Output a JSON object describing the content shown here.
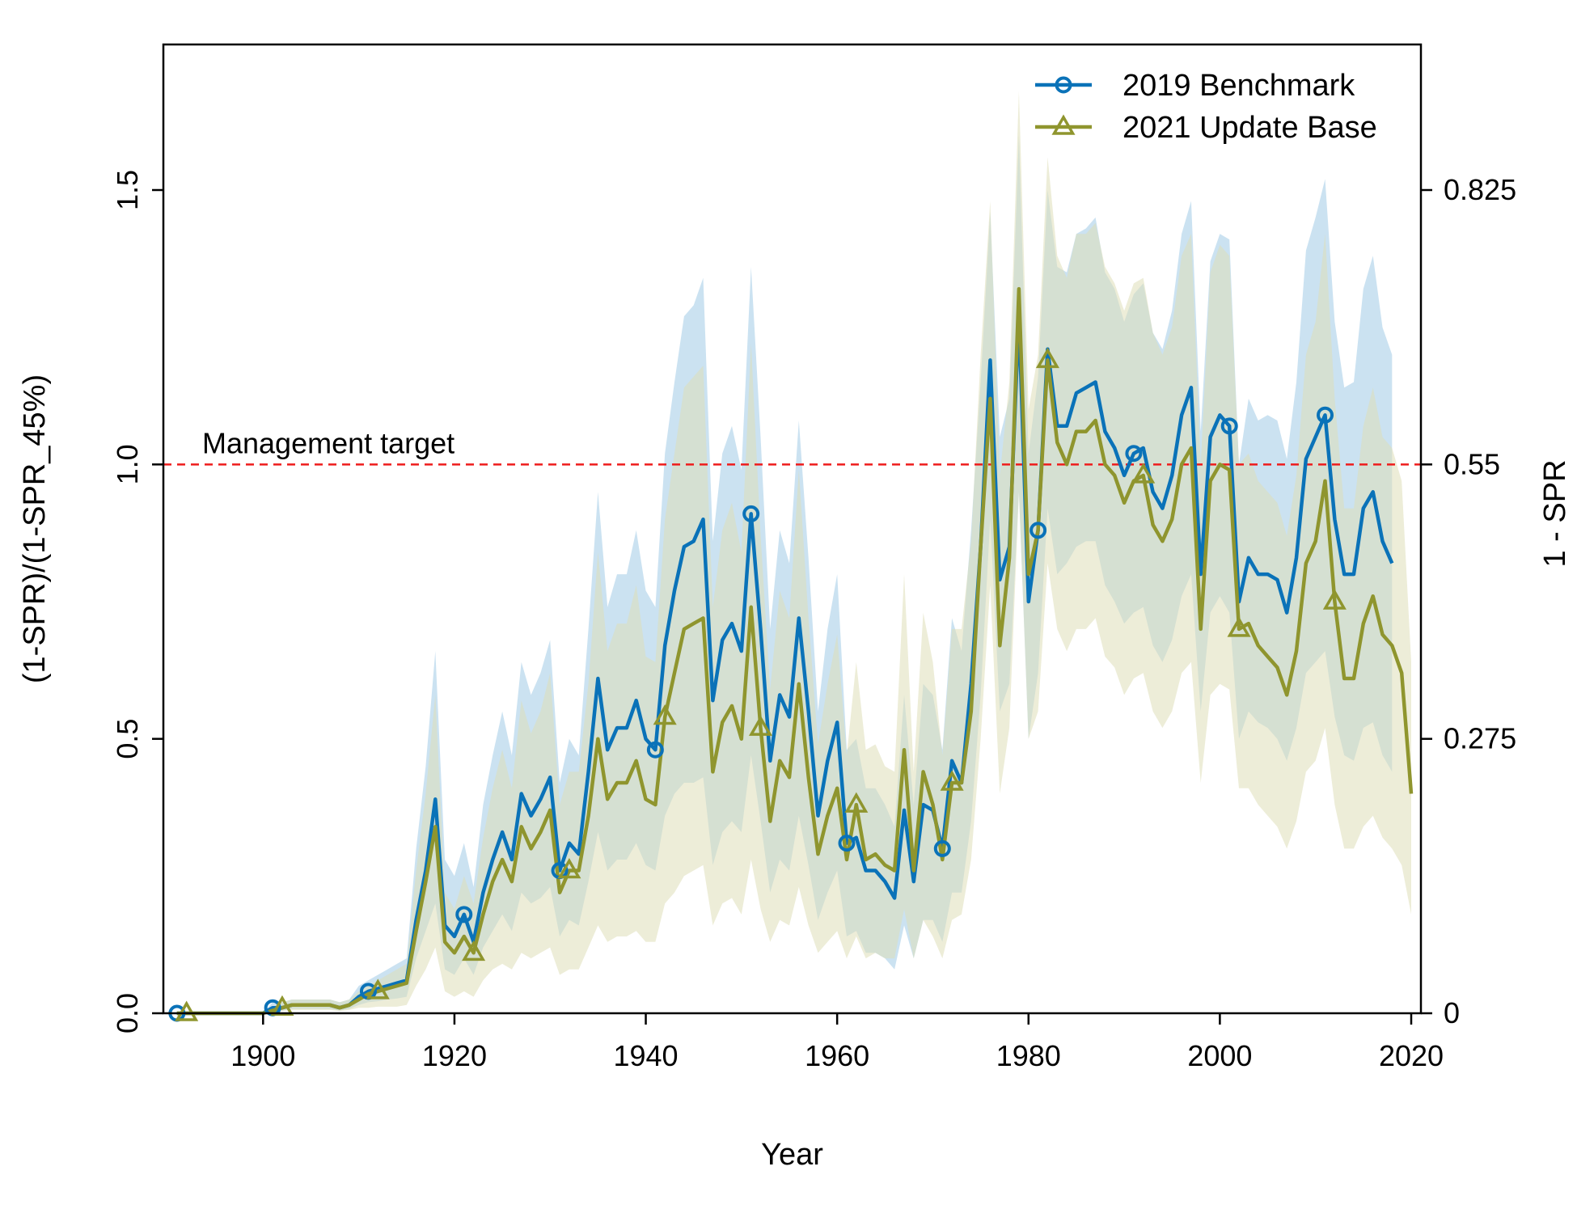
{
  "chart_data": {
    "type": "line",
    "xlabel": "Year",
    "ylabel": "(1-SPR)/(1-SPR_45%)",
    "y2label": "1 - SPR",
    "xlim": [
      1890,
      2020
    ],
    "ylim": [
      0,
      1.5
    ],
    "xticks": [
      "1900",
      "1920",
      "1940",
      "1960",
      "1980",
      "2000",
      "2020"
    ],
    "yticks": [
      "0.0",
      "0.5",
      "1.0",
      "1.5"
    ],
    "y2ticks": [
      "0",
      "0.275",
      "0.55",
      "0.825"
    ],
    "y2_scale": 0.55,
    "reference_line": {
      "y": 1.0,
      "label": "Management target",
      "color": "#ee1c1c"
    },
    "legend_position": "top-right",
    "series": [
      {
        "name": "2019 Benchmark",
        "color": "#0a72b8",
        "band_color": "#a9cfe8",
        "marker": "circle",
        "marker_years": [
          1891,
          1901,
          1911,
          1921,
          1931,
          1941,
          1951,
          1961,
          1971,
          1981,
          1991,
          2001,
          2011
        ],
        "x": [
          1891,
          1892,
          1893,
          1894,
          1895,
          1896,
          1897,
          1898,
          1899,
          1900,
          1901,
          1902,
          1903,
          1904,
          1905,
          1906,
          1907,
          1908,
          1909,
          1910,
          1911,
          1912,
          1913,
          1914,
          1915,
          1916,
          1917,
          1918,
          1919,
          1920,
          1921,
          1922,
          1923,
          1924,
          1925,
          1926,
          1927,
          1928,
          1929,
          1930,
          1931,
          1932,
          1933,
          1934,
          1935,
          1936,
          1937,
          1938,
          1939,
          1940,
          1941,
          1942,
          1943,
          1944,
          1945,
          1946,
          1947,
          1948,
          1949,
          1950,
          1951,
          1952,
          1953,
          1954,
          1955,
          1956,
          1957,
          1958,
          1959,
          1960,
          1961,
          1962,
          1963,
          1964,
          1965,
          1966,
          1967,
          1968,
          1969,
          1970,
          1971,
          1972,
          1973,
          1974,
          1975,
          1976,
          1977,
          1978,
          1979,
          1980,
          1981,
          1982,
          1983,
          1984,
          1985,
          1986,
          1987,
          1988,
          1989,
          1990,
          1991,
          1992,
          1993,
          1994,
          1995,
          1996,
          1997,
          1998,
          1999,
          2000,
          2001,
          2002,
          2003,
          2004,
          2005,
          2006,
          2007,
          2008,
          2009,
          2010,
          2011,
          2012,
          2013,
          2014,
          2015,
          2016,
          2017,
          2018
        ],
        "y": [
          0.0,
          0.0,
          0.0,
          0.0,
          0.0,
          0.0,
          0.0,
          0.0,
          0.0,
          0.0,
          0.01,
          0.01,
          0.015,
          0.015,
          0.015,
          0.015,
          0.015,
          0.01,
          0.015,
          0.03,
          0.04,
          0.045,
          0.05,
          0.055,
          0.06,
          0.17,
          0.26,
          0.39,
          0.16,
          0.14,
          0.18,
          0.13,
          0.22,
          0.28,
          0.33,
          0.28,
          0.4,
          0.36,
          0.39,
          0.43,
          0.26,
          0.31,
          0.29,
          0.44,
          0.61,
          0.48,
          0.52,
          0.52,
          0.57,
          0.5,
          0.48,
          0.67,
          0.77,
          0.85,
          0.86,
          0.9,
          0.57,
          0.68,
          0.71,
          0.66,
          0.91,
          0.7,
          0.46,
          0.58,
          0.54,
          0.72,
          0.55,
          0.36,
          0.46,
          0.53,
          0.31,
          0.32,
          0.26,
          0.26,
          0.24,
          0.21,
          0.37,
          0.24,
          0.38,
          0.37,
          0.3,
          0.46,
          0.42,
          0.6,
          0.85,
          1.19,
          0.79,
          0.85,
          1.27,
          0.75,
          0.88,
          1.21,
          1.07,
          1.07,
          1.13,
          1.14,
          1.15,
          1.06,
          1.03,
          0.98,
          1.02,
          1.03,
          0.95,
          0.92,
          0.98,
          1.09,
          1.14,
          0.8,
          1.05,
          1.09,
          1.07,
          0.75,
          0.83,
          0.8,
          0.8,
          0.79,
          0.73,
          0.83,
          1.01,
          1.05,
          1.09,
          0.9,
          0.8,
          0.8,
          0.92,
          0.95,
          0.86,
          0.82
        ],
        "lower": [
          0.0,
          0.0,
          0.0,
          0.0,
          0.0,
          0.0,
          0.0,
          0.0,
          0.0,
          0.0,
          0.005,
          0.005,
          0.008,
          0.008,
          0.008,
          0.008,
          0.008,
          0.005,
          0.008,
          0.015,
          0.02,
          0.022,
          0.025,
          0.027,
          0.03,
          0.1,
          0.15,
          0.2,
          0.08,
          0.07,
          0.1,
          0.07,
          0.12,
          0.15,
          0.18,
          0.15,
          0.22,
          0.2,
          0.21,
          0.23,
          0.14,
          0.17,
          0.16,
          0.24,
          0.33,
          0.26,
          0.28,
          0.28,
          0.31,
          0.27,
          0.26,
          0.36,
          0.4,
          0.42,
          0.42,
          0.43,
          0.27,
          0.33,
          0.35,
          0.33,
          0.47,
          0.35,
          0.22,
          0.28,
          0.26,
          0.36,
          0.27,
          0.17,
          0.22,
          0.26,
          0.14,
          0.15,
          0.11,
          0.11,
          0.1,
          0.08,
          0.16,
          0.1,
          0.17,
          0.17,
          0.13,
          0.22,
          0.22,
          0.35,
          0.58,
          0.9,
          0.55,
          0.6,
          0.95,
          0.5,
          0.62,
          0.92,
          0.8,
          0.82,
          0.85,
          0.86,
          0.86,
          0.78,
          0.75,
          0.71,
          0.73,
          0.74,
          0.67,
          0.64,
          0.68,
          0.76,
          0.8,
          0.55,
          0.73,
          0.76,
          0.73,
          0.5,
          0.55,
          0.53,
          0.52,
          0.5,
          0.46,
          0.52,
          0.62,
          0.64,
          0.66,
          0.54,
          0.47,
          0.46,
          0.52,
          0.53,
          0.47,
          0.44
        ],
        "upper": [
          0.0,
          0.0,
          0.0,
          0.0,
          0.0,
          0.0,
          0.0,
          0.0,
          0.0,
          0.0,
          0.02,
          0.02,
          0.025,
          0.025,
          0.025,
          0.025,
          0.025,
          0.02,
          0.025,
          0.05,
          0.06,
          0.07,
          0.08,
          0.09,
          0.1,
          0.3,
          0.45,
          0.66,
          0.28,
          0.25,
          0.31,
          0.23,
          0.38,
          0.47,
          0.55,
          0.47,
          0.64,
          0.58,
          0.62,
          0.68,
          0.42,
          0.5,
          0.47,
          0.7,
          0.95,
          0.74,
          0.8,
          0.8,
          0.88,
          0.77,
          0.74,
          1.02,
          1.15,
          1.27,
          1.29,
          1.34,
          0.86,
          1.02,
          1.07,
          0.99,
          1.36,
          1.05,
          0.7,
          0.88,
          0.82,
          1.08,
          0.83,
          0.55,
          0.7,
          0.8,
          0.48,
          0.5,
          0.41,
          0.41,
          0.38,
          0.34,
          0.58,
          0.38,
          0.6,
          0.58,
          0.48,
          0.72,
          0.66,
          0.88,
          1.15,
          1.46,
          1.05,
          1.12,
          1.6,
          1.02,
          1.16,
          1.5,
          1.36,
          1.35,
          1.42,
          1.43,
          1.45,
          1.35,
          1.32,
          1.26,
          1.31,
          1.33,
          1.24,
          1.21,
          1.28,
          1.42,
          1.48,
          1.06,
          1.37,
          1.42,
          1.41,
          1.0,
          1.12,
          1.08,
          1.09,
          1.08,
          1.01,
          1.15,
          1.39,
          1.45,
          1.52,
          1.26,
          1.14,
          1.15,
          1.32,
          1.38,
          1.25,
          1.2
        ]
      },
      {
        "name": "2021 Update Base",
        "color": "#8f952e",
        "band_color": "#dedfb8",
        "marker": "triangle",
        "marker_years": [
          1892,
          1902,
          1912,
          1922,
          1932,
          1942,
          1952,
          1962,
          1972,
          1982,
          1992,
          2002,
          2012
        ],
        "x": [
          1891,
          1892,
          1893,
          1894,
          1895,
          1896,
          1897,
          1898,
          1899,
          1900,
          1901,
          1902,
          1903,
          1904,
          1905,
          1906,
          1907,
          1908,
          1909,
          1910,
          1911,
          1912,
          1913,
          1914,
          1915,
          1916,
          1917,
          1918,
          1919,
          1920,
          1921,
          1922,
          1923,
          1924,
          1925,
          1926,
          1927,
          1928,
          1929,
          1930,
          1931,
          1932,
          1933,
          1934,
          1935,
          1936,
          1937,
          1938,
          1939,
          1940,
          1941,
          1942,
          1943,
          1944,
          1945,
          1946,
          1947,
          1948,
          1949,
          1950,
          1951,
          1952,
          1953,
          1954,
          1955,
          1956,
          1957,
          1958,
          1959,
          1960,
          1961,
          1962,
          1963,
          1964,
          1965,
          1966,
          1967,
          1968,
          1969,
          1970,
          1971,
          1972,
          1973,
          1974,
          1975,
          1976,
          1977,
          1978,
          1979,
          1980,
          1981,
          1982,
          1983,
          1984,
          1985,
          1986,
          1987,
          1988,
          1989,
          1990,
          1991,
          1992,
          1993,
          1994,
          1995,
          1996,
          1997,
          1998,
          1999,
          2000,
          2001,
          2002,
          2003,
          2004,
          2005,
          2006,
          2007,
          2008,
          2009,
          2010,
          2011,
          2012,
          2013,
          2014,
          2015,
          2016,
          2017,
          2018,
          2019,
          2020
        ],
        "y": [
          0.0,
          0.0,
          0.0,
          0.0,
          0.0,
          0.0,
          0.0,
          0.0,
          0.0,
          0.0,
          0.005,
          0.01,
          0.015,
          0.015,
          0.015,
          0.015,
          0.015,
          0.01,
          0.015,
          0.025,
          0.035,
          0.04,
          0.045,
          0.05,
          0.055,
          0.15,
          0.24,
          0.34,
          0.13,
          0.11,
          0.14,
          0.11,
          0.18,
          0.24,
          0.28,
          0.24,
          0.34,
          0.3,
          0.33,
          0.37,
          0.22,
          0.26,
          0.26,
          0.36,
          0.5,
          0.39,
          0.42,
          0.42,
          0.46,
          0.39,
          0.38,
          0.54,
          0.62,
          0.7,
          0.71,
          0.72,
          0.44,
          0.53,
          0.56,
          0.5,
          0.74,
          0.52,
          0.35,
          0.46,
          0.43,
          0.6,
          0.43,
          0.29,
          0.36,
          0.41,
          0.28,
          0.38,
          0.28,
          0.29,
          0.27,
          0.26,
          0.48,
          0.26,
          0.44,
          0.38,
          0.28,
          0.42,
          0.42,
          0.55,
          0.85,
          1.12,
          0.67,
          0.83,
          1.32,
          0.8,
          0.88,
          1.19,
          1.04,
          1.0,
          1.06,
          1.06,
          1.08,
          1.0,
          0.98,
          0.93,
          0.97,
          0.98,
          0.89,
          0.86,
          0.9,
          1.0,
          1.03,
          0.7,
          0.97,
          1.0,
          0.99,
          0.7,
          0.71,
          0.67,
          0.65,
          0.63,
          0.58,
          0.66,
          0.82,
          0.86,
          0.97,
          0.75,
          0.61,
          0.61,
          0.71,
          0.76,
          0.69,
          0.67,
          0.62,
          0.4
        ],
        "lower": [
          0.0,
          0.0,
          0.0,
          0.0,
          0.0,
          0.0,
          0.0,
          0.0,
          0.0,
          0.0,
          0.002,
          0.004,
          0.006,
          0.006,
          0.006,
          0.006,
          0.006,
          0.004,
          0.006,
          0.01,
          0.01,
          0.012,
          0.012,
          0.012,
          0.015,
          0.05,
          0.08,
          0.12,
          0.04,
          0.03,
          0.04,
          0.03,
          0.06,
          0.08,
          0.09,
          0.08,
          0.11,
          0.1,
          0.11,
          0.12,
          0.07,
          0.08,
          0.08,
          0.12,
          0.16,
          0.13,
          0.14,
          0.14,
          0.15,
          0.13,
          0.13,
          0.2,
          0.22,
          0.25,
          0.26,
          0.27,
          0.16,
          0.2,
          0.21,
          0.18,
          0.28,
          0.19,
          0.13,
          0.17,
          0.16,
          0.23,
          0.16,
          0.11,
          0.13,
          0.15,
          0.1,
          0.14,
          0.1,
          0.11,
          0.1,
          0.1,
          0.19,
          0.1,
          0.17,
          0.14,
          0.1,
          0.17,
          0.18,
          0.28,
          0.5,
          0.78,
          0.4,
          0.52,
          0.95,
          0.5,
          0.55,
          0.82,
          0.7,
          0.66,
          0.7,
          0.7,
          0.72,
          0.65,
          0.63,
          0.58,
          0.61,
          0.62,
          0.55,
          0.52,
          0.55,
          0.62,
          0.64,
          0.42,
          0.58,
          0.6,
          0.59,
          0.41,
          0.41,
          0.38,
          0.36,
          0.34,
          0.3,
          0.35,
          0.44,
          0.46,
          0.52,
          0.38,
          0.3,
          0.3,
          0.34,
          0.36,
          0.32,
          0.3,
          0.27,
          0.18
        ],
        "upper": [
          0.0,
          0.0,
          0.0,
          0.0,
          0.0,
          0.0,
          0.0,
          0.0,
          0.0,
          0.0,
          0.01,
          0.02,
          0.025,
          0.025,
          0.025,
          0.025,
          0.025,
          0.02,
          0.025,
          0.04,
          0.05,
          0.06,
          0.07,
          0.08,
          0.09,
          0.26,
          0.4,
          0.58,
          0.22,
          0.19,
          0.25,
          0.2,
          0.32,
          0.41,
          0.48,
          0.41,
          0.57,
          0.51,
          0.55,
          0.62,
          0.38,
          0.44,
          0.44,
          0.6,
          0.84,
          0.66,
          0.71,
          0.71,
          0.78,
          0.65,
          0.64,
          0.9,
          1.02,
          1.14,
          1.16,
          1.18,
          0.74,
          0.88,
          0.93,
          0.84,
          1.22,
          0.87,
          0.59,
          0.77,
          0.72,
          0.99,
          0.72,
          0.49,
          0.6,
          0.69,
          0.47,
          0.64,
          0.48,
          0.49,
          0.45,
          0.44,
          0.8,
          0.44,
          0.73,
          0.64,
          0.47,
          0.7,
          0.7,
          0.86,
          1.2,
          1.48,
          0.98,
          1.15,
          1.68,
          1.1,
          1.2,
          1.56,
          1.38,
          1.34,
          1.42,
          1.42,
          1.44,
          1.36,
          1.33,
          1.28,
          1.33,
          1.34,
          1.24,
          1.2,
          1.25,
          1.38,
          1.42,
          1.0,
          1.35,
          1.4,
          1.38,
          1.0,
          1.02,
          0.97,
          0.95,
          0.93,
          0.87,
          0.98,
          1.2,
          1.26,
          1.42,
          1.12,
          0.92,
          0.92,
          1.07,
          1.14,
          1.05,
          1.03,
          0.97,
          0.64
        ]
      }
    ]
  }
}
